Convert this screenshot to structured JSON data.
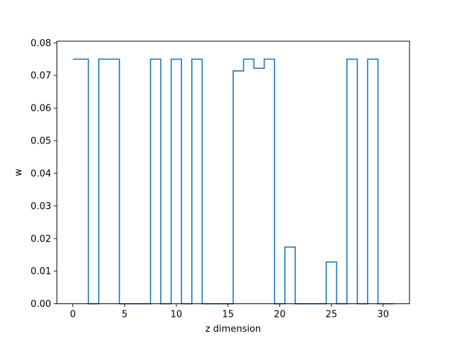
{
  "chart_data": {
    "type": "line",
    "drawstyle": "steps-mid",
    "xlabel": "z dimension",
    "ylabel": "w",
    "xlim": [
      -1.55,
      32.55
    ],
    "ylim": [
      0.0,
      0.0805
    ],
    "xticks": [
      0,
      5,
      10,
      15,
      20,
      25,
      30
    ],
    "yticks": [
      0.0,
      0.01,
      0.02,
      0.03,
      0.04,
      0.05,
      0.06,
      0.07,
      0.08
    ],
    "ytick_labels": [
      "0.00",
      "0.01",
      "0.02",
      "0.03",
      "0.04",
      "0.05",
      "0.06",
      "0.07",
      "0.08"
    ],
    "grid": false,
    "series": [
      {
        "color": "#1f77b4",
        "x": [
          0,
          1,
          2,
          3,
          4,
          5,
          6,
          7,
          8,
          9,
          10,
          11,
          12,
          13,
          14,
          15,
          16,
          17,
          18,
          19,
          20,
          21,
          22,
          23,
          24,
          25,
          26,
          27,
          28,
          29,
          30,
          31
        ],
        "y": [
          0.075,
          0.075,
          0.0,
          0.075,
          0.075,
          0.0,
          0.0,
          0.0,
          0.075,
          0.0,
          0.075,
          0.0,
          0.075,
          0.0,
          0.0,
          0.0,
          0.0714,
          0.075,
          0.0722,
          0.075,
          0.0,
          0.0174,
          0.0,
          0.0,
          0.0,
          0.0128,
          0.0,
          0.075,
          0.0,
          0.075,
          0.0,
          0.0
        ]
      }
    ]
  }
}
